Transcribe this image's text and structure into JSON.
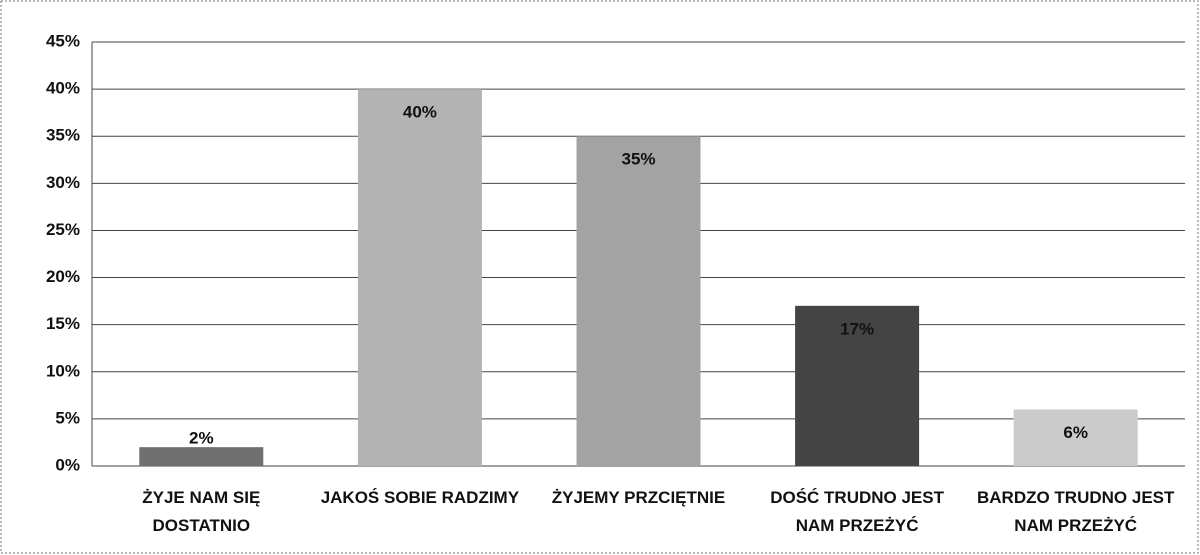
{
  "chart_data": {
    "type": "bar",
    "categories": [
      "ŻYJE NAM SIĘ DOSTATNIO",
      "JAKOŚ SOBIE RADZIMY",
      "ŻYJEMY PRZCIĘTNIE",
      "DOŚĆ TRUDNO JEST NAM PRZEŻYĆ",
      "BARDZO TRUDNO JEST NAM PRZEŻYĆ"
    ],
    "values": [
      2,
      40,
      35,
      17,
      6
    ],
    "value_labels": [
      "2%",
      "40%",
      "35%",
      "17%",
      "6%"
    ],
    "colors": [
      "#6f6f6f",
      "#b3b3b3",
      "#a3a3a3",
      "#444444",
      "#cbcbcb"
    ],
    "ylim": [
      0,
      45
    ],
    "yticks": [
      {
        "value": 0,
        "label": "0%"
      },
      {
        "value": 5,
        "label": "5%"
      },
      {
        "value": 10,
        "label": "10%"
      },
      {
        "value": 15,
        "label": "15%"
      },
      {
        "value": 20,
        "label": "20%"
      },
      {
        "value": 25,
        "label": "25%"
      },
      {
        "value": 30,
        "label": "30%"
      },
      {
        "value": 35,
        "label": "35%"
      },
      {
        "value": 40,
        "label": "40%"
      },
      {
        "value": 45,
        "label": "45%"
      }
    ],
    "grid": true
  }
}
